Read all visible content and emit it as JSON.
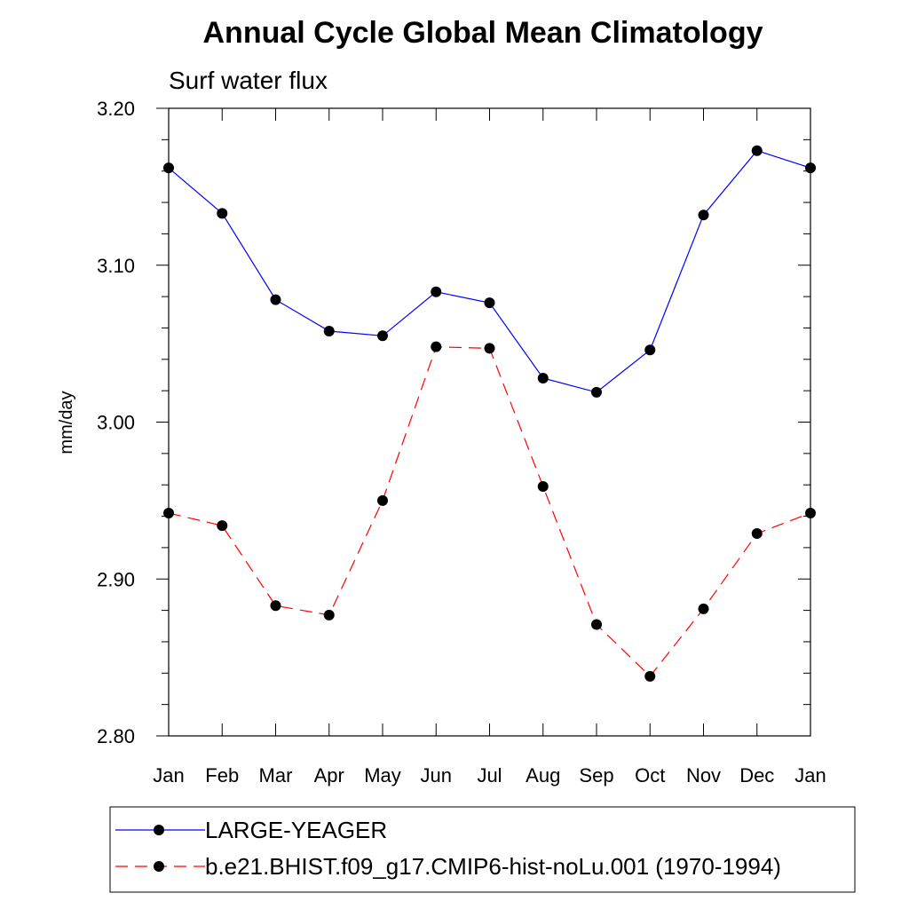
{
  "chart_data": {
    "type": "line",
    "title": "Annual Cycle Global Mean Climatology",
    "subtitle": "Surf water flux",
    "ylabel": "mm/day",
    "xlabel": "",
    "categories": [
      "Jan",
      "Feb",
      "Mar",
      "Apr",
      "May",
      "Jun",
      "Jul",
      "Aug",
      "Sep",
      "Oct",
      "Nov",
      "Dec",
      "Jan"
    ],
    "ylim": [
      2.8,
      3.2
    ],
    "yticks": [
      "2.80",
      "2.90",
      "3.00",
      "3.10",
      "3.20"
    ],
    "grid": false,
    "legend_position": "bottom",
    "series": [
      {
        "name": "LARGE-YEAGER",
        "color": "#0000ff",
        "dash": "solid",
        "values": [
          3.162,
          3.133,
          3.078,
          3.058,
          3.055,
          3.083,
          3.076,
          3.028,
          3.019,
          3.046,
          3.132,
          3.173,
          3.162
        ]
      },
      {
        "name": "b.e21.BHIST.f09_g17.CMIP6-hist-noLu.001 (1970-1994)",
        "color": "#ff0000",
        "dash": "dashed",
        "values": [
          2.942,
          2.934,
          2.883,
          2.877,
          2.95,
          3.048,
          3.047,
          2.959,
          2.871,
          2.838,
          2.881,
          2.929,
          2.942
        ]
      }
    ]
  }
}
